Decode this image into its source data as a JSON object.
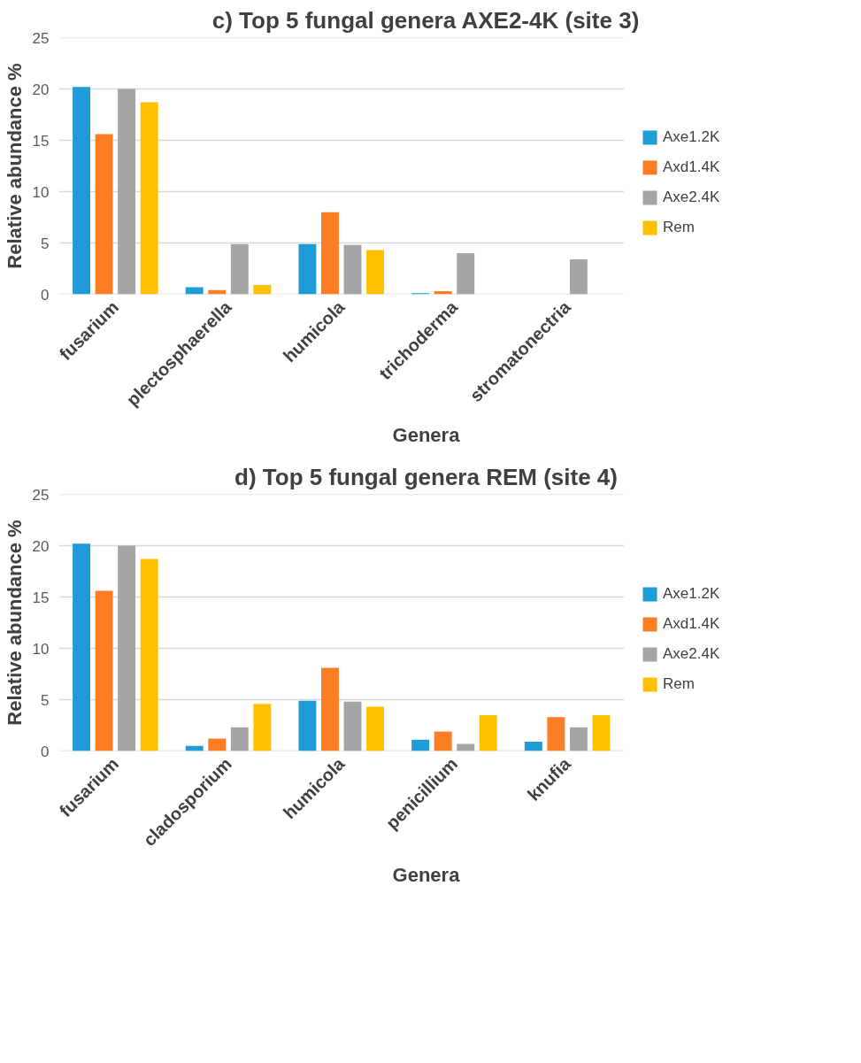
{
  "chart_data": [
    {
      "type": "bar",
      "title": "c) Top 5 fungal genera AXE2-4K (site 3)",
      "xlabel": "Genera",
      "ylabel": "Relative abundance %",
      "categories": [
        "fusarium",
        "plectosphaerella",
        "humicola",
        "trichoderma",
        "stromatonectria"
      ],
      "series": [
        {
          "name": "Axe1.2K",
          "color": "#1f9bd7",
          "values": [
            20.2,
            0.7,
            4.9,
            0.1,
            0
          ]
        },
        {
          "name": "Axd1.4K",
          "color": "#fc7d23",
          "values": [
            15.6,
            0.4,
            8.0,
            0.3,
            0
          ]
        },
        {
          "name": "Axe2.4K",
          "color": "#a5a5a5",
          "values": [
            20.0,
            4.9,
            4.8,
            4.0,
            3.4
          ]
        },
        {
          "name": "Rem",
          "color": "#ffc000",
          "values": [
            18.7,
            0.9,
            4.3,
            0,
            0
          ]
        }
      ],
      "ylim": [
        0,
        25
      ],
      "yticks": [
        0,
        5,
        10,
        15,
        20,
        25
      ],
      "grid": "y",
      "legend": "right"
    },
    {
      "type": "bar",
      "title": "d) Top 5 fungal genera REM (site 4)",
      "xlabel": "Genera",
      "ylabel": "Relative abundance %",
      "categories": [
        "fusarium",
        "cladosporium",
        "humicola",
        "penicillium",
        "knufia"
      ],
      "series": [
        {
          "name": "Axe1.2K",
          "color": "#1f9bd7",
          "values": [
            20.2,
            0.5,
            4.9,
            1.1,
            0.9
          ]
        },
        {
          "name": "Axd1.4K",
          "color": "#fc7d23",
          "values": [
            15.6,
            1.2,
            8.1,
            1.9,
            3.3
          ]
        },
        {
          "name": "Axe2.4K",
          "color": "#a5a5a5",
          "values": [
            20.0,
            2.3,
            4.8,
            0.7,
            2.3
          ]
        },
        {
          "name": "Rem",
          "color": "#ffc000",
          "values": [
            18.7,
            4.6,
            4.3,
            3.5,
            3.5
          ]
        }
      ],
      "ylim": [
        0,
        25
      ],
      "yticks": [
        0,
        5,
        10,
        15,
        20,
        25
      ],
      "grid": "y",
      "legend": "right"
    }
  ]
}
